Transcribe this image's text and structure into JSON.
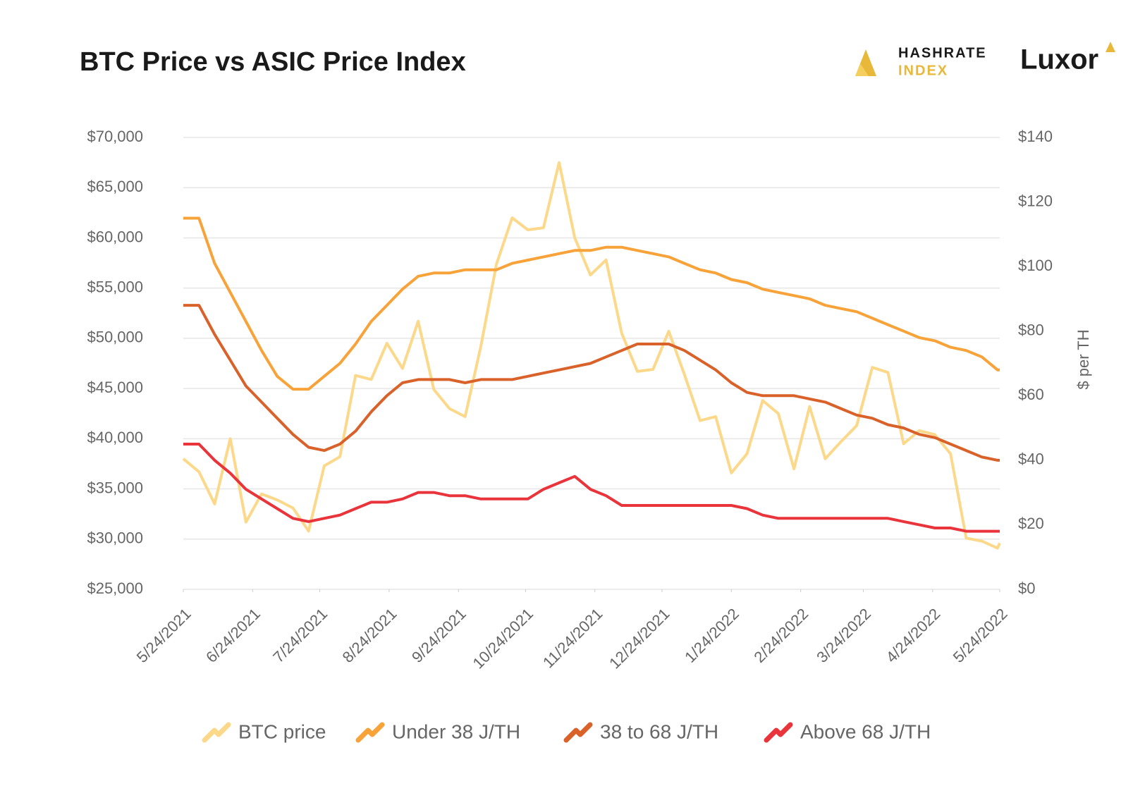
{
  "branding": {
    "hashrate_top": "HASHRATE",
    "hashrate_bottom": "INDEX",
    "luxor": "Luxor"
  },
  "chart_data": {
    "type": "line",
    "title": "BTC Price vs ASIC Price Index",
    "y2_label": "$ per TH",
    "x": [
      "5/24/2021",
      "5/31/2021",
      "6/7/2021",
      "6/14/2021",
      "6/21/2021",
      "6/28/2021",
      "7/5/2021",
      "7/12/2021",
      "7/19/2021",
      "7/26/2021",
      "8/2/2021",
      "8/9/2021",
      "8/16/2021",
      "8/23/2021",
      "8/30/2021",
      "9/6/2021",
      "9/13/2021",
      "9/20/2021",
      "9/27/2021",
      "10/4/2021",
      "10/11/2021",
      "10/18/2021",
      "10/25/2021",
      "11/1/2021",
      "11/8/2021",
      "11/15/2021",
      "11/22/2021",
      "11/29/2021",
      "12/6/2021",
      "12/13/2021",
      "12/20/2021",
      "12/27/2021",
      "1/3/2022",
      "1/10/2022",
      "1/17/2022",
      "1/24/2022",
      "1/31/2022",
      "2/7/2022",
      "2/14/2022",
      "2/21/2022",
      "2/28/2022",
      "3/7/2022",
      "3/14/2022",
      "3/21/2022",
      "3/28/2022",
      "4/4/2022",
      "4/11/2022",
      "4/18/2022",
      "4/25/2022",
      "5/2/2022",
      "5/9/2022",
      "5/16/2022",
      "5/23/2022",
      "5/24/2022"
    ],
    "xlim": [
      "5/24/2021",
      "5/24/2022"
    ],
    "xticks": [
      "5/24/2021",
      "6/24/2021",
      "7/24/2021",
      "8/24/2021",
      "9/24/2021",
      "10/24/2021",
      "11/24/2021",
      "12/24/2021",
      "1/24/2022",
      "2/24/2022",
      "3/24/2022",
      "4/24/2022",
      "5/24/2022"
    ],
    "ylim": [
      25000,
      70000
    ],
    "yticks": [
      {
        "value": 25000,
        "label": "$25,000"
      },
      {
        "value": 30000,
        "label": "$30,000"
      },
      {
        "value": 35000,
        "label": "$35,000"
      },
      {
        "value": 40000,
        "label": "$40,000"
      },
      {
        "value": 45000,
        "label": "$45,000"
      },
      {
        "value": 50000,
        "label": "$50,000"
      },
      {
        "value": 55000,
        "label": "$55,000"
      },
      {
        "value": 60000,
        "label": "$60,000"
      },
      {
        "value": 65000,
        "label": "$65,000"
      },
      {
        "value": 70000,
        "label": "$70,000"
      }
    ],
    "y2lim": [
      0,
      140
    ],
    "y2ticks": [
      {
        "value": 0,
        "label": "$0"
      },
      {
        "value": 20,
        "label": "$20"
      },
      {
        "value": 40,
        "label": "$40"
      },
      {
        "value": 60,
        "label": "$60"
      },
      {
        "value": 80,
        "label": "$80"
      },
      {
        "value": 100,
        "label": "$100"
      },
      {
        "value": 120,
        "label": "$120"
      },
      {
        "value": 140,
        "label": "$140"
      }
    ],
    "grid": true,
    "legend": "bottom",
    "series": [
      {
        "name": "BTC price",
        "color": "#fcd98a",
        "values": [
          38000,
          36700,
          33500,
          40000,
          31700,
          34500,
          33900,
          33100,
          30800,
          37300,
          38200,
          46300,
          45900,
          49500,
          47000,
          51700,
          44900,
          43000,
          42200,
          49200,
          57400,
          62000,
          60800,
          61000,
          67500,
          60000,
          56300,
          57800,
          50500,
          46700,
          46900,
          50700,
          46400,
          41800,
          42200,
          36600,
          38500,
          43800,
          42500,
          37000,
          43200,
          38000,
          39700,
          41300,
          47100,
          46600,
          39500,
          40800,
          40400,
          38500,
          30100,
          29800,
          29100,
          29600
        ]
      },
      {
        "name": "Under 38 J/TH",
        "color": "#f7a33a",
        "axis": "y2",
        "values": [
          115,
          115,
          101,
          92,
          83,
          74,
          66,
          62,
          62,
          66,
          70,
          76,
          83,
          88,
          93,
          97,
          98,
          98,
          99,
          99,
          99,
          101,
          102,
          103,
          104,
          105,
          105,
          106,
          106,
          105,
          104,
          103,
          101,
          99,
          98,
          96,
          95,
          93,
          92,
          91,
          90,
          88,
          87,
          86,
          84,
          82,
          80,
          78,
          77,
          75,
          74,
          72,
          68,
          68
        ]
      },
      {
        "name": "38 to 68 J/TH",
        "color": "#d9622b",
        "axis": "y2",
        "values": [
          88,
          88,
          79,
          71,
          63,
          58,
          53,
          48,
          44,
          43,
          45,
          49,
          55,
          60,
          64,
          65,
          65,
          65,
          64,
          65,
          65,
          65,
          66,
          67,
          68,
          69,
          70,
          72,
          74,
          76,
          76,
          76,
          74,
          71,
          68,
          64,
          61,
          60,
          60,
          60,
          59,
          58,
          56,
          54,
          53,
          51,
          50,
          48,
          47,
          45,
          43,
          41,
          40,
          40
        ]
      },
      {
        "name": "Above 68 J/TH",
        "color": "#e8343a",
        "axis": "y2",
        "values": [
          45,
          45,
          40,
          36,
          31,
          28,
          25,
          22,
          21,
          22,
          23,
          25,
          27,
          27,
          28,
          30,
          30,
          29,
          29,
          28,
          28,
          28,
          28,
          31,
          33,
          35,
          31,
          29,
          26,
          26,
          26,
          26,
          26,
          26,
          26,
          26,
          25,
          23,
          22,
          22,
          22,
          22,
          22,
          22,
          22,
          22,
          21,
          20,
          19,
          19,
          18,
          18,
          18,
          18
        ]
      }
    ]
  }
}
